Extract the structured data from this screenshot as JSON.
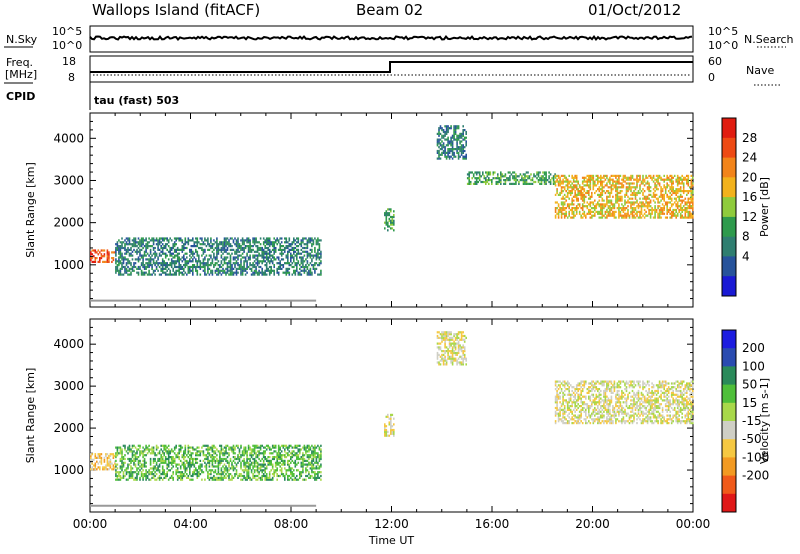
{
  "header": {
    "station": "Wallops Island (fitACF)",
    "beam": "Beam 02",
    "date": "01/Oct/2012"
  },
  "strip_panels": {
    "nsky_label": "N.Sky",
    "nsky_ticks": [
      "10^5",
      "10^0"
    ],
    "nsearch_label": "N.Search",
    "nsearch_ticks": [
      "10^5",
      "10^0"
    ],
    "freq_label_line1": "Freq.",
    "freq_label_line2": "[MHz]",
    "freq_ticks": [
      "18",
      "8"
    ],
    "nave_label": "Nave",
    "nave_ticks": [
      "60",
      "0"
    ],
    "cpid_label": "CPID",
    "cpid_value": "tau (fast) 503"
  },
  "chart_data": [
    {
      "type": "heatmap",
      "parameter": "Power",
      "ylabel": "Slant Range [km]",
      "xlabel": "",
      "ylim": [
        0,
        4600
      ],
      "yticks": [
        "1000",
        "2000",
        "3000",
        "4000"
      ],
      "colorbar": {
        "label": "Power [dB]",
        "ticks": [
          "4",
          "8",
          "12",
          "16",
          "20",
          "24",
          "28"
        ],
        "colors": [
          "#1a1ad4",
          "#27539b",
          "#2f7e70",
          "#2e9a4c",
          "#8fcb3c",
          "#f2b21c",
          "#f2841a",
          "#ee4a14",
          "#e01c10"
        ]
      },
      "echo_regions": [
        {
          "t_start": 0.0,
          "t_end": 1.0,
          "r_start": 1050,
          "r_end": 1350,
          "level": "28"
        },
        {
          "t_start": 1.0,
          "t_end": 9.2,
          "r_start": 750,
          "r_end": 1650,
          "level": "8"
        },
        {
          "t_start": 11.7,
          "t_end": 12.1,
          "r_start": 1800,
          "r_end": 2300,
          "level": "12"
        },
        {
          "t_start": 13.8,
          "t_end": 15.0,
          "r_start": 3500,
          "r_end": 4300,
          "level": "8"
        },
        {
          "t_start": 15.0,
          "t_end": 18.5,
          "r_start": 2900,
          "r_end": 3200,
          "level": "12"
        },
        {
          "t_start": 18.5,
          "t_end": 24.0,
          "r_start": 2100,
          "r_end": 3100,
          "level": "20"
        }
      ]
    },
    {
      "type": "heatmap",
      "parameter": "Velocity",
      "ylabel": "Slant Range [km]",
      "xlabel": "Time UT",
      "ylim": [
        0,
        4600
      ],
      "xticks": [
        "00:00",
        "04:00",
        "08:00",
        "12:00",
        "16:00",
        "20:00",
        "00:00"
      ],
      "yticks": [
        "1000",
        "2000",
        "3000",
        "4000"
      ],
      "colorbar": {
        "label": "Velocity [m s-1]",
        "ticks": [
          "200",
          "100",
          "50",
          "15",
          "-15",
          "-50",
          "-100",
          "-200"
        ],
        "colors": [
          "#1c1ce0",
          "#2a4bb0",
          "#2a8a5a",
          "#4fbf3a",
          "#a8d84a",
          "#cfcfc5",
          "#f5c842",
          "#f29a22",
          "#f05a1a",
          "#e01818"
        ]
      },
      "echo_regions": [
        {
          "t_start": 0.0,
          "t_end": 1.0,
          "r_start": 1000,
          "r_end": 1400,
          "level": "-50"
        },
        {
          "t_start": 1.0,
          "t_end": 9.2,
          "r_start": 750,
          "r_end": 1600,
          "level": "50"
        },
        {
          "t_start": 11.7,
          "t_end": 12.1,
          "r_start": 1800,
          "r_end": 2300,
          "level": "-15"
        },
        {
          "t_start": 13.8,
          "t_end": 15.0,
          "r_start": 3500,
          "r_end": 4300,
          "level": "-15"
        },
        {
          "t_start": 18.5,
          "t_end": 24.0,
          "r_start": 2100,
          "r_end": 3100,
          "level": "-15"
        }
      ]
    }
  ]
}
